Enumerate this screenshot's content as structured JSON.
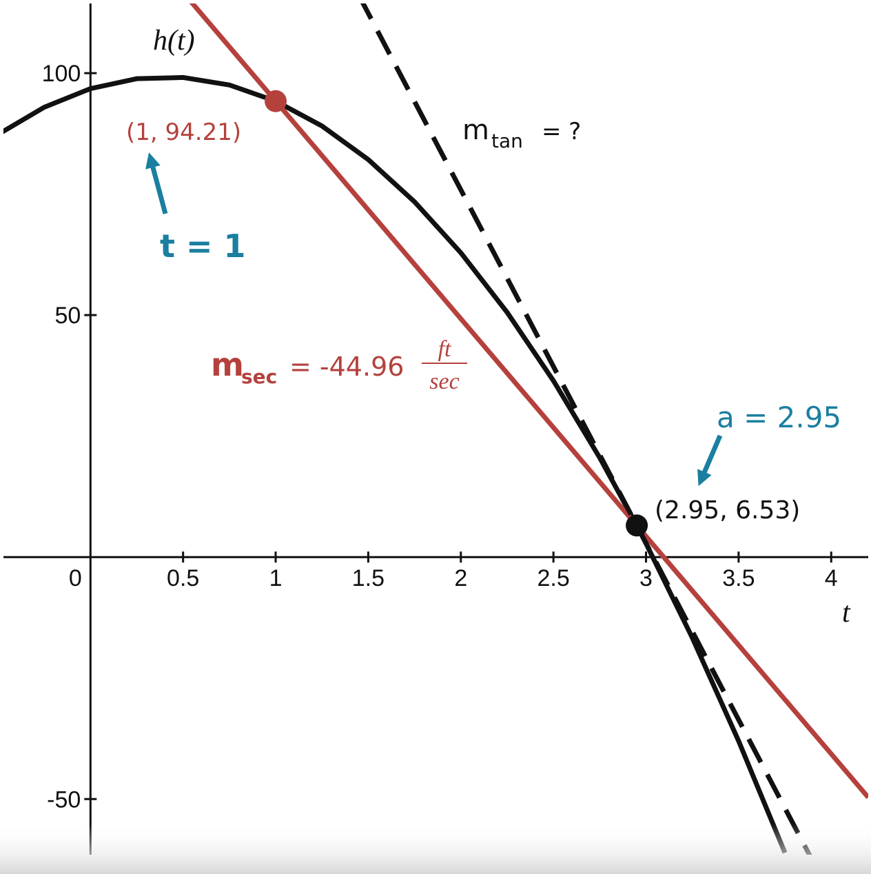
{
  "chart_data": {
    "type": "line",
    "xlim": [
      -0.47,
      4.2
    ],
    "ylim": [
      -61.5,
      114.4
    ],
    "xticks": [
      0,
      0.5,
      1,
      1.5,
      2,
      2.5,
      3,
      3.5,
      4
    ],
    "yticks": [
      -50,
      50,
      100
    ],
    "x_label": "t",
    "series": [
      {
        "name": "h(t)",
        "color": "#111111",
        "dashed": false,
        "x": [
          -0.5,
          -0.25,
          0,
          0.25,
          0.5,
          0.75,
          1,
          1.25,
          1.5,
          1.75,
          2,
          2.25,
          2.5,
          2.75,
          2.95,
          3,
          3.25,
          3.5,
          3.75
        ],
        "values": [
          87.32,
          92.95,
          96.8,
          98.85,
          99.1,
          97.56,
          94.21,
          89.08,
          82.14,
          73.41,
          62.88,
          50.56,
          36.44,
          20.53,
          6.53,
          2.81,
          -16.69,
          -38.0,
          -61.1
        ]
      },
      {
        "color": "#b5413d",
        "dashed": false,
        "x": [
          0.5,
          4.2
        ],
        "values": [
          116.69,
          -49.66
        ]
      },
      {
        "color": "#111111",
        "dashed": true,
        "x": [
          1.45,
          3.9
        ],
        "values": [
          116.03,
          -62.82
        ]
      }
    ],
    "points": [
      {
        "x": 1,
        "y": 94.21,
        "color": "#b5413d",
        "label": "(1, 94.21)",
        "note": "t = 1"
      },
      {
        "x": 2.95,
        "y": 6.53,
        "color": "#111111",
        "label": "(2.95, 6.53)",
        "note": "a = 2.95"
      }
    ],
    "secant_label": {
      "m": "m",
      "sub": "sec",
      "text": "= -44.96",
      "num": "ft",
      "den": "sec"
    },
    "tangent_label": {
      "m": "m",
      "sub": "tan",
      "text": "= ?"
    }
  }
}
